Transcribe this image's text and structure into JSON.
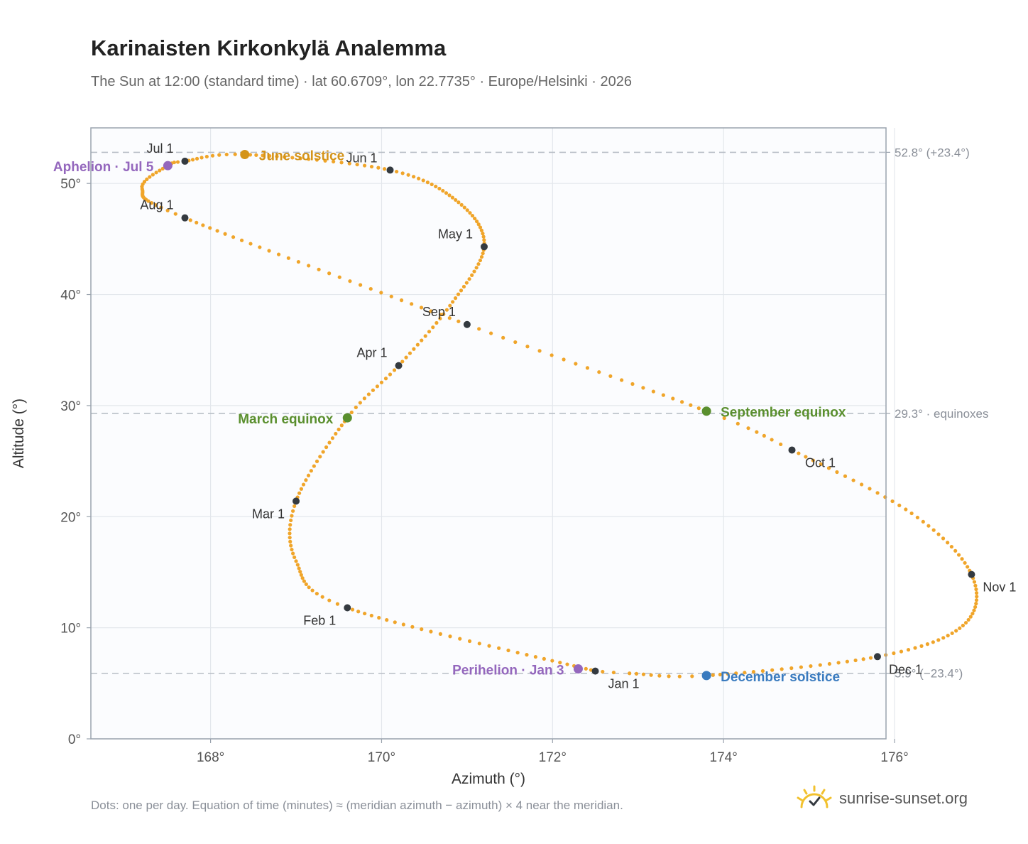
{
  "header": {
    "title": "Karinaisten Kirkonkylä Analemma",
    "subtitle": "The Sun at 12:00 (standard time) · lat 60.6709°, lon 22.7735° · Europe/Helsinki · 2026"
  },
  "footer": {
    "note": "Dots: one per day. Equation of time (minutes) ≈ (meridian azimuth − azimuth) × 4 near the meridian.",
    "brand": "sunrise-sunset.org"
  },
  "colors": {
    "path": "#f0a52a",
    "month_marker": "#343a40",
    "solstice_june": "#d4941a",
    "solstice_december": "#3a7bbf",
    "equinox": "#5a8f2e",
    "apsis": "#9467bd",
    "reference_line": "#b8bec6",
    "grid": "#e3e7ec",
    "plot_bg": "#fbfcfe",
    "frame": "#9aa3ae",
    "brand_icon": "#f2c12e"
  },
  "chart_data": {
    "type": "scatter",
    "xlabel": "Azimuth (°)",
    "ylabel": "Altitude (°)",
    "xlim": [
      166.6,
      175.9
    ],
    "ylim": [
      0,
      55
    ],
    "x_ticks": [
      {
        "value": 168,
        "label": "168°"
      },
      {
        "value": 170,
        "label": "170°"
      },
      {
        "value": 172,
        "label": "172°"
      },
      {
        "value": 174,
        "label": "174°"
      },
      {
        "value": 176,
        "label": "176°"
      }
    ],
    "y_ticks": [
      {
        "value": 0,
        "label": "0°"
      },
      {
        "value": 10,
        "label": "10°"
      },
      {
        "value": 20,
        "label": "20°"
      },
      {
        "value": 30,
        "label": "30°"
      },
      {
        "value": 40,
        "label": "40°"
      },
      {
        "value": 50,
        "label": "50°"
      }
    ],
    "grid": true,
    "reference_lines": [
      {
        "y": 52.8,
        "label": "52.8° (+23.4°)"
      },
      {
        "y": 29.3,
        "label": "29.3° · equinoxes"
      },
      {
        "y": 5.9,
        "label": "5.9° (−23.4°)"
      }
    ],
    "month_markers": [
      {
        "label": "Jan 1",
        "x": 172.5,
        "y": 6.1
      },
      {
        "label": "Feb 1",
        "x": 169.6,
        "y": 11.8
      },
      {
        "label": "Mar 1",
        "x": 169.0,
        "y": 21.4
      },
      {
        "label": "Apr 1",
        "x": 170.2,
        "y": 33.6
      },
      {
        "label": "May 1",
        "x": 171.2,
        "y": 44.3
      },
      {
        "label": "Jun 1",
        "x": 170.1,
        "y": 51.2
      },
      {
        "label": "Jul 1",
        "x": 167.7,
        "y": 52.0
      },
      {
        "label": "Aug 1",
        "x": 167.7,
        "y": 46.9
      },
      {
        "label": "Sep 1",
        "x": 171.0,
        "y": 37.3
      },
      {
        "label": "Oct 1",
        "x": 174.8,
        "y": 26.0
      },
      {
        "label": "Nov 1",
        "x": 176.9,
        "y": 14.8
      },
      {
        "label": "Dec 1",
        "x": 175.8,
        "y": 7.4
      }
    ],
    "events": [
      {
        "label": "June solstice",
        "x": 168.4,
        "y": 52.6,
        "kind": "solstice_june"
      },
      {
        "label": "December solstice",
        "x": 173.8,
        "y": 5.7,
        "kind": "solstice_december"
      },
      {
        "label": "March equinox",
        "x": 169.6,
        "y": 28.9,
        "kind": "equinox"
      },
      {
        "label": "September equinox",
        "x": 173.8,
        "y": 29.5,
        "kind": "equinox"
      },
      {
        "label": "Aphelion · Jul 5",
        "x": 167.5,
        "y": 51.6,
        "kind": "apsis"
      },
      {
        "label": "Perihelion · Jan 3",
        "x": 172.3,
        "y": 6.3,
        "kind": "apsis"
      }
    ],
    "path_knots": [
      {
        "day": 1,
        "x": 172.5,
        "y": 6.1
      },
      {
        "day": 32,
        "x": 169.6,
        "y": 11.8
      },
      {
        "day": 46,
        "x": 169.0,
        "y": 16.0
      },
      {
        "day": 60,
        "x": 169.0,
        "y": 21.4
      },
      {
        "day": 79,
        "x": 169.6,
        "y": 28.9
      },
      {
        "day": 91,
        "x": 170.2,
        "y": 33.6
      },
      {
        "day": 105,
        "x": 170.8,
        "y": 39.0
      },
      {
        "day": 121,
        "x": 171.2,
        "y": 44.3
      },
      {
        "day": 136,
        "x": 170.9,
        "y": 48.3
      },
      {
        "day": 152,
        "x": 170.1,
        "y": 51.2
      },
      {
        "day": 172,
        "x": 168.4,
        "y": 52.6
      },
      {
        "day": 182,
        "x": 167.7,
        "y": 52.0
      },
      {
        "day": 186,
        "x": 167.5,
        "y": 51.6
      },
      {
        "day": 197,
        "x": 167.2,
        "y": 49.5
      },
      {
        "day": 213,
        "x": 167.7,
        "y": 46.9
      },
      {
        "day": 244,
        "x": 171.0,
        "y": 37.3
      },
      {
        "day": 266,
        "x": 173.8,
        "y": 29.5
      },
      {
        "day": 274,
        "x": 174.8,
        "y": 26.0
      },
      {
        "day": 290,
        "x": 176.2,
        "y": 20.3
      },
      {
        "day": 305,
        "x": 176.9,
        "y": 14.8
      },
      {
        "day": 320,
        "x": 176.8,
        "y": 10.2
      },
      {
        "day": 335,
        "x": 175.8,
        "y": 7.4
      },
      {
        "day": 355,
        "x": 173.8,
        "y": 5.7
      },
      {
        "day": 363,
        "x": 172.9,
        "y": 5.9
      },
      {
        "day": 366,
        "x": 172.5,
        "y": 6.1
      }
    ]
  }
}
